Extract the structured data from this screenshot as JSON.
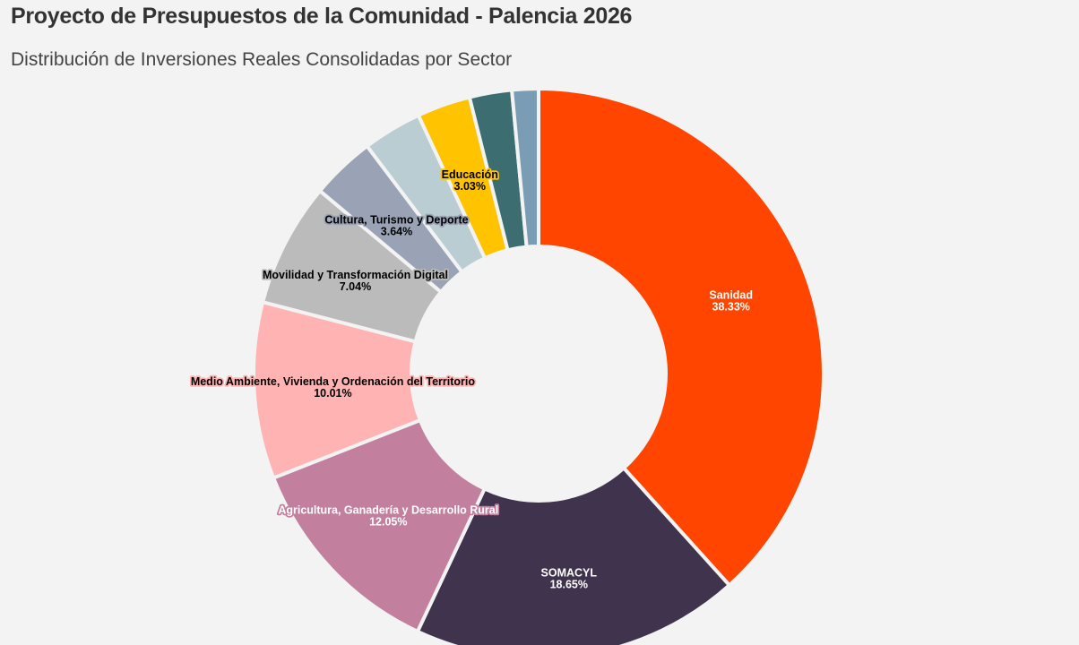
{
  "header": {
    "title": "Proyecto de Presupuestos de la Comunidad - Palencia 2026",
    "subtitle": "Distribución de Inversiones Reales Consolidadas por Sector"
  },
  "chart_data": {
    "type": "pie",
    "variant": "donut",
    "title": "Proyecto de Presupuestos de la Comunidad - Palencia 2026",
    "subtitle": "Distribución de Inversiones Reales Consolidadas por Sector",
    "unit": "%",
    "slices": [
      {
        "label": "Sanidad",
        "value": 38.33,
        "display": "38.33%",
        "color": "#FF4500",
        "text_color": "#ffffff",
        "shown": true
      },
      {
        "label": "SOMACYL",
        "value": 18.65,
        "display": "18.65%",
        "color": "#3F334D",
        "text_color": "#ffffff",
        "shown": true
      },
      {
        "label": "Agricultura, Ganadería y Desarrollo Rural",
        "value": 12.05,
        "display": "12.05%",
        "color": "#C27F9E",
        "text_color": "#ffffff",
        "shown": true
      },
      {
        "label": "Medio Ambiente, Vivienda y Ordenación del Territorio",
        "value": 10.01,
        "display": "10.01%",
        "color": "#FFB3B3",
        "text_color": "#000000",
        "shown": true
      },
      {
        "label": "Movilidad y Transformación Digital",
        "value": 7.04,
        "display": "7.04%",
        "color": "#BBBBBB",
        "text_color": "#000000",
        "shown": true
      },
      {
        "label": "Cultura, Turismo y Deporte",
        "value": 3.64,
        "display": "3.64%",
        "color": "#9AA3B5",
        "text_color": "#000000",
        "shown": true
      },
      {
        "label": "",
        "value": 3.35,
        "display": "",
        "color": "#B9CDD3",
        "text_color": "#000000",
        "shown": false
      },
      {
        "label": "Educación",
        "value": 3.03,
        "display": "3.03%",
        "color": "#FFC300",
        "text_color": "#000000",
        "shown": true
      },
      {
        "label": "",
        "value": 2.4,
        "display": "",
        "color": "#3C6E71",
        "text_color": "#ffffff",
        "shown": false
      },
      {
        "label": "",
        "value": 1.5,
        "display": "",
        "color": "#7A9CB5",
        "text_color": "#ffffff",
        "shown": false
      }
    ],
    "start_angle": "top",
    "direction": "clockwise",
    "legend": "none"
  }
}
